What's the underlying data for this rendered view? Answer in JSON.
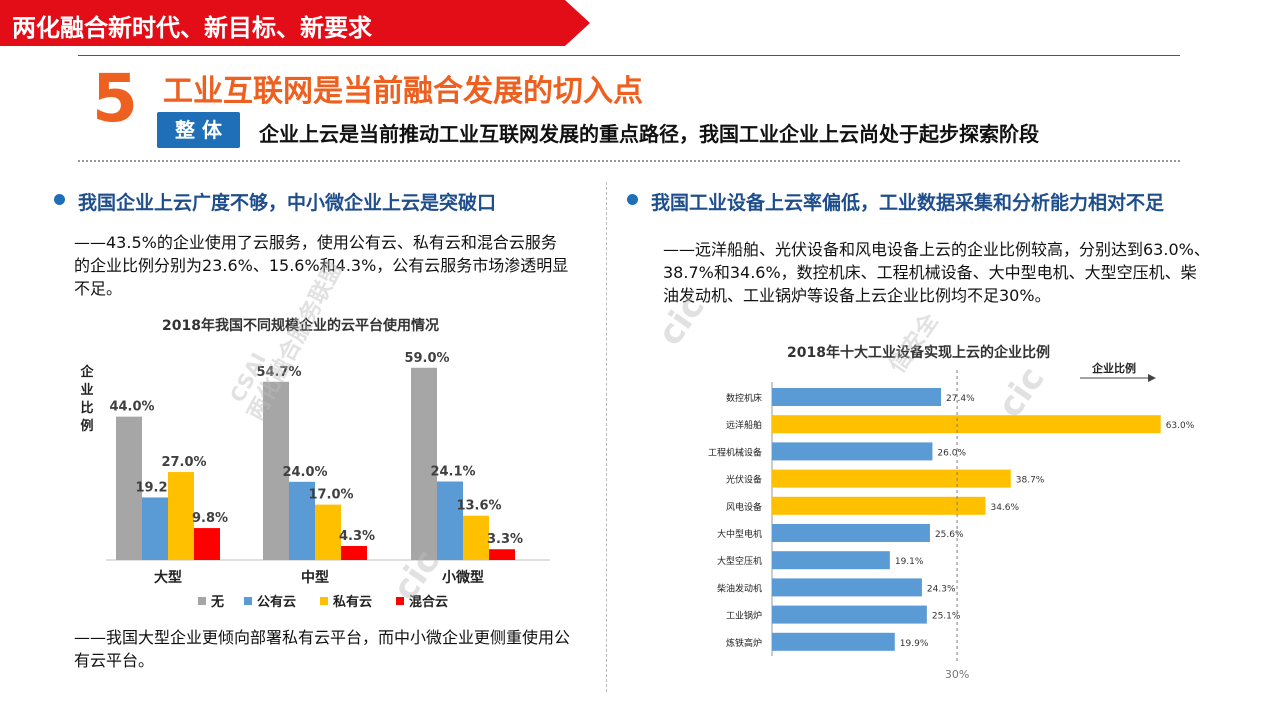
{
  "header": {
    "banner": "两化融合新时代、新目标、新要求",
    "section_number": "5",
    "section_title": "工业互联网是当前融合发展的切入点",
    "badge": "整 体",
    "subtitle": "企业上云是当前推动工业互联网发展的重点路径，我国工业企业上云尚处于起步探索阶段"
  },
  "left": {
    "heading": "我国企业上云广度不够，中小微企业上云是突破口",
    "para1": "——43.5%的企业使用了云服务，使用公有云、私有云和混合云服务的企业比例分别为23.6%、15.6%和4.3%，公有云服务市场渗透明显不足。",
    "para2": "——我国大型企业更倾向部署私有云平台，而中小微企业更侧重使用公有云平台。"
  },
  "right": {
    "heading": "我国工业设备上云率偏低，工业数据采集和分析能力相对不足",
    "para1": "——远洋船舶、光伏设备和风电设备上云的企业比例较高，分别达到63.0%、38.7%和34.6%，数控机床、工程机械设备、大中型电机、大型空压机、柴油发动机、工业锅炉等设备上云企业比例均不足30%。"
  },
  "watermarks": [
    "两化融合服务联盟",
    "信安全",
    "CSAI",
    "cic"
  ],
  "chart_data": [
    {
      "type": "bar",
      "title": "2018年我国不同规模企业的云平台使用情况",
      "ylabel": "企业比例",
      "categories": [
        "大型",
        "中型",
        "小微型"
      ],
      "series": [
        {
          "name": "无",
          "color": "#a6a6a6",
          "values": [
            44.0,
            54.7,
            59.0
          ]
        },
        {
          "name": "公有云",
          "color": "#5b9bd5",
          "values": [
            19.2,
            24.0,
            24.1
          ]
        },
        {
          "name": "私有云",
          "color": "#ffc000",
          "values": [
            27.0,
            17.0,
            13.6
          ]
        },
        {
          "name": "混合云",
          "color": "#ff0000",
          "values": [
            9.8,
            4.3,
            3.3
          ]
        }
      ],
      "ylim": [
        0,
        62
      ],
      "legend": "bottom",
      "grid": false
    },
    {
      "type": "bar",
      "orientation": "horizontal",
      "title": "2018年十大工业设备实现上云的企业比例",
      "xlabel": "企业比例",
      "categories": [
        "数控机床",
        "远洋船舶",
        "工程机械设备",
        "光伏设备",
        "风电设备",
        "大中型电机",
        "大型空压机",
        "柴油发动机",
        "工业锅炉",
        "炼铁高炉"
      ],
      "values": [
        27.4,
        63.0,
        26.0,
        38.7,
        34.6,
        25.6,
        19.1,
        24.3,
        25.1,
        19.9
      ],
      "colors": [
        "#5b9bd5",
        "#ffc000",
        "#5b9bd5",
        "#ffc000",
        "#ffc000",
        "#5b9bd5",
        "#5b9bd5",
        "#5b9bd5",
        "#5b9bd5",
        "#5b9bd5"
      ],
      "reference_line": {
        "value": 30,
        "label": "30%"
      },
      "xlim": [
        0,
        65
      ],
      "legend": "none",
      "grid": false
    }
  ]
}
